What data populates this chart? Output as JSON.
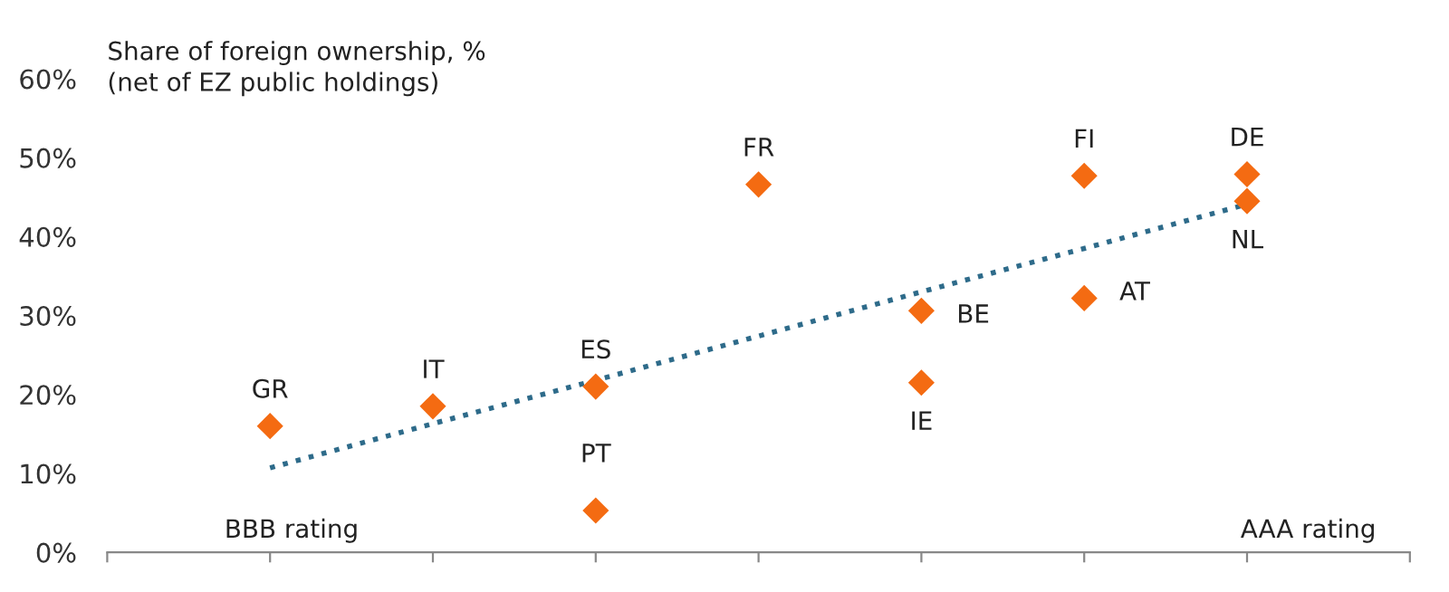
{
  "chart_data": {
    "type": "scatter",
    "ylabel": "Share of foreign ownership, %\n(net of EZ public holdings)",
    "categories": [
      null,
      null,
      null,
      null,
      null,
      null,
      null
    ],
    "ylim": [
      0,
      60
    ],
    "yticks": [
      {
        "value": 0,
        "label": "0%"
      },
      {
        "value": 10,
        "label": "10%"
      },
      {
        "value": 20,
        "label": "20%"
      },
      {
        "value": 30,
        "label": "30%"
      },
      {
        "value": 40,
        "label": "40%"
      },
      {
        "value": 50,
        "label": "50%"
      },
      {
        "value": 60,
        "label": "60%"
      }
    ],
    "grid": false,
    "series": [
      {
        "color": "#f46b12",
        "marker": "diamond",
        "values": [
          16.0,
          18.5,
          21.0,
          46.6,
          30.6,
          47.7,
          47.9
        ]
      },
      {
        "color": "#f46b12",
        "marker": "diamond",
        "values": [
          null,
          null,
          5.3,
          null,
          21.5,
          32.2,
          44.5
        ]
      },
      {
        "type": "line",
        "color": "#2e6b8a",
        "line_style": "dotted",
        "values": [
          10.7,
          16.3,
          21.8,
          27.4,
          33.0,
          38.5,
          44.1
        ]
      }
    ],
    "annotations": [
      {
        "text": "GR",
        "y": 16.0
      },
      {
        "text": "IT",
        "y": 18.5
      },
      {
        "text": "ES",
        "y": 21.0
      },
      {
        "text": "PT",
        "y": 5.3
      },
      {
        "text": "FR",
        "y": 46.6
      },
      "BE",
      {
        "text": "IE",
        "y": 21.5
      },
      {
        "text": "FI",
        "y": 47.7
      },
      "AT",
      {
        "text": "DE",
        "y": 47.9
      },
      {
        "text": "NL",
        "y": 44.5
      },
      "BBB rating",
      "AAA rating"
    ]
  }
}
